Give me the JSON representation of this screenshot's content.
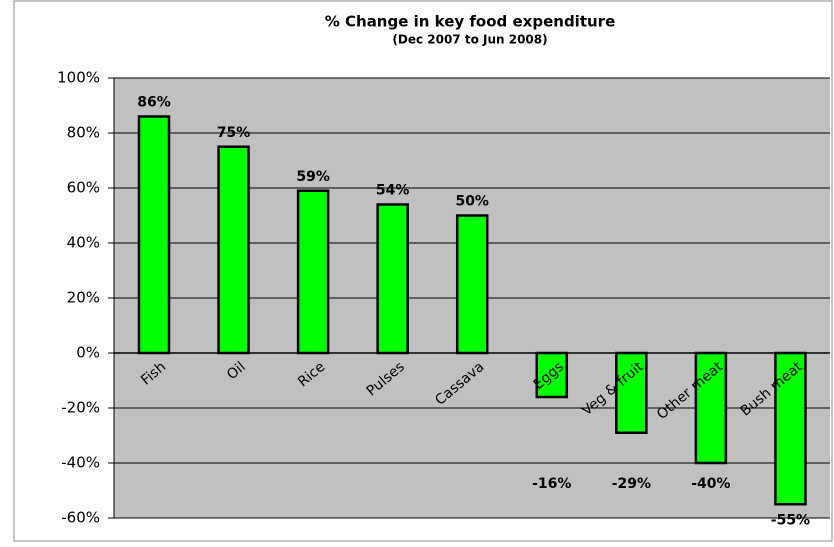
{
  "chart_data": {
    "type": "bar",
    "title": "% Change in key food expenditure",
    "subtitle": "(Dec 2007 to Jun 2008)",
    "categories": [
      "Fish",
      "Oil",
      "Rice",
      "Pulses",
      "Cassava",
      "Eggs",
      "Veg & fruit",
      "Other meat",
      "Bush meat"
    ],
    "values": [
      86,
      75,
      59,
      54,
      50,
      -16,
      -29,
      -40,
      -55
    ],
    "value_labels": [
      "86%",
      "75%",
      "59%",
      "54%",
      "50%",
      "-16%",
      "-29%",
      "-40%",
      "-55%"
    ],
    "color": "#00ff00",
    "ylim": [
      -60,
      100
    ],
    "yticks": [
      {
        "value": -60,
        "label": "-60%"
      },
      {
        "value": -40,
        "label": "-40%"
      },
      {
        "value": -20,
        "label": "-20%"
      },
      {
        "value": 0,
        "label": "0%"
      },
      {
        "value": 20,
        "label": "20%"
      },
      {
        "value": 40,
        "label": "40%"
      },
      {
        "value": 60,
        "label": "60%"
      },
      {
        "value": 80,
        "label": "80%"
      },
      {
        "value": 100,
        "label": "100%"
      }
    ],
    "grid": true
  }
}
